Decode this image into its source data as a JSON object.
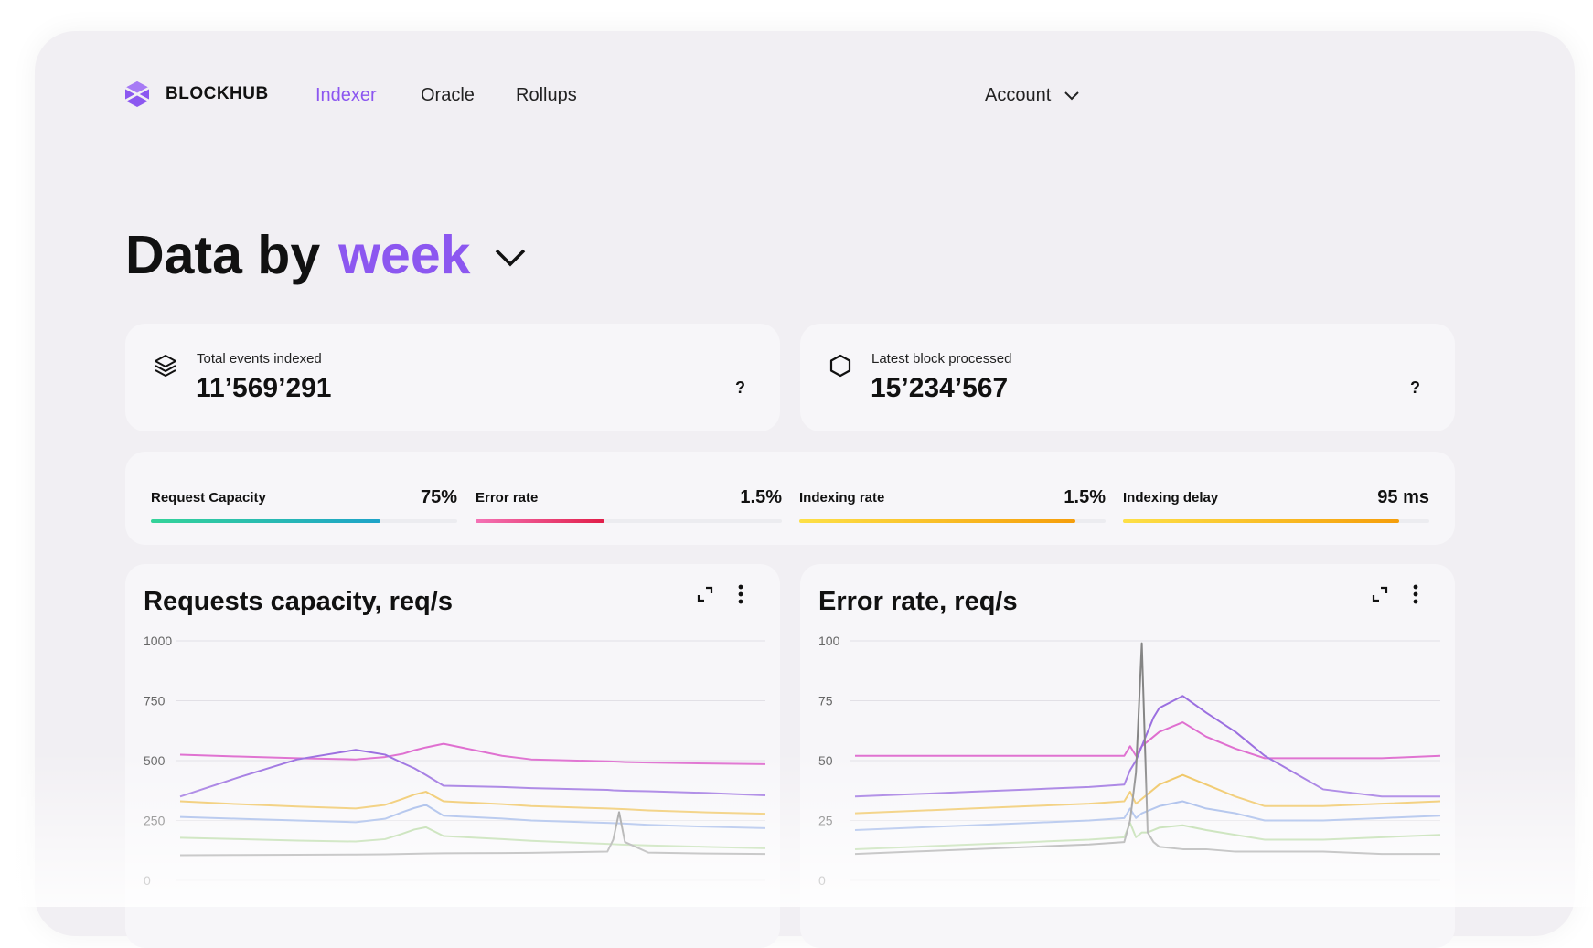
{
  "nav": {
    "brand": "BLOCKHUB",
    "items": [
      {
        "label": "Indexer",
        "active": true
      },
      {
        "label": "Oracle",
        "active": false
      },
      {
        "label": "Rollups",
        "active": false
      }
    ],
    "account_label": "Account"
  },
  "heading": {
    "prefix": "Data by",
    "period": "week"
  },
  "kpis": [
    {
      "icon": "layers-icon",
      "label": "Total events indexed",
      "value": "11’569’291",
      "help": "?"
    },
    {
      "icon": "hexagon-icon",
      "label": "Latest block processed",
      "value": "15’234’567",
      "help": "?"
    }
  ],
  "metrics": [
    {
      "label": "Request Capacity",
      "value": "75%",
      "fill_fraction": 0.75,
      "colors": [
        "#34d399",
        "#1ea3c9"
      ]
    },
    {
      "label": "Error rate",
      "value": "1.5%",
      "fill_fraction": 0.42,
      "colors": [
        "#f472b6",
        "#e11d48"
      ]
    },
    {
      "label": "Indexing rate",
      "value": "1.5%",
      "fill_fraction": 0.9,
      "colors": [
        "#fde047",
        "#f59e0b"
      ]
    },
    {
      "label": "Indexing delay",
      "value": "95 ms",
      "fill_fraction": 0.9,
      "colors": [
        "#fde047",
        "#f59e0b"
      ]
    }
  ],
  "colors": {
    "accent": "#8c57f0"
  },
  "chart_data": [
    {
      "type": "line",
      "title": "Requests capacity, req/s",
      "ylim": [
        0,
        1000
      ],
      "yticks": [
        0,
        250,
        500,
        750,
        1000
      ],
      "x": [
        0,
        10,
        20,
        30,
        35,
        38,
        40,
        42,
        45,
        55,
        60,
        73,
        74,
        75,
        76,
        80,
        90,
        100
      ],
      "series": [
        {
          "color": "#df6fd0",
          "values": [
            525,
            517,
            510,
            505,
            515,
            528,
            543,
            555,
            570,
            520,
            505,
            497,
            496,
            495,
            494,
            492,
            488,
            485
          ]
        },
        {
          "color": "#9b6fe0",
          "values": [
            350,
            430,
            505,
            545,
            525,
            490,
            468,
            440,
            395,
            390,
            385,
            378,
            376,
            375,
            374,
            372,
            365,
            355
          ]
        },
        {
          "color": "#eec053",
          "values": [
            330,
            318,
            308,
            300,
            315,
            340,
            358,
            370,
            330,
            318,
            310,
            300,
            299,
            298,
            297,
            292,
            284,
            278
          ]
        },
        {
          "color": "#94aee6",
          "values": [
            265,
            257,
            250,
            243,
            257,
            285,
            302,
            315,
            270,
            258,
            250,
            240,
            239,
            238,
            237,
            232,
            224,
            218
          ]
        },
        {
          "color": "#a8d190",
          "values": [
            178,
            172,
            166,
            162,
            172,
            195,
            212,
            222,
            185,
            172,
            165,
            152,
            151,
            150,
            149,
            146,
            140,
            134
          ]
        },
        {
          "color": "#858585",
          "values": [
            105,
            106,
            107,
            108,
            109,
            110,
            111,
            112,
            113,
            114,
            115,
            120,
            170,
            285,
            160,
            116,
            112,
            110
          ]
        }
      ]
    },
    {
      "type": "line",
      "title": "Error rate, req/s",
      "ylim": [
        0,
        100
      ],
      "yticks": [
        0,
        25,
        50,
        75,
        100
      ],
      "x": [
        0,
        10,
        20,
        30,
        40,
        46,
        47,
        48,
        49,
        50,
        51,
        52,
        56,
        60,
        65,
        70,
        75,
        80,
        90,
        100
      ],
      "series": [
        {
          "color": "#df6fd0",
          "values": [
            52,
            52,
            52,
            52,
            52,
            52,
            56,
            52,
            56,
            58,
            60,
            62,
            66,
            60,
            55,
            51,
            51,
            51,
            51,
            52
          ]
        },
        {
          "color": "#9b6fe0",
          "values": [
            35,
            36,
            37,
            38,
            39,
            40,
            46,
            50,
            56,
            62,
            68,
            72,
            77,
            70,
            62,
            52,
            45,
            38,
            35,
            35
          ]
        },
        {
          "color": "#eec053",
          "values": [
            28,
            29,
            30,
            31,
            32,
            33,
            37,
            32,
            34,
            36,
            38,
            40,
            44,
            40,
            35,
            31,
            31,
            31,
            32,
            33
          ]
        },
        {
          "color": "#94aee6",
          "values": [
            21,
            22,
            23,
            24,
            25,
            26,
            30,
            26,
            28,
            29,
            30,
            31,
            33,
            30,
            28,
            25,
            25,
            25,
            26,
            27
          ]
        },
        {
          "color": "#a8d190",
          "values": [
            13,
            14,
            15,
            16,
            17,
            18,
            24,
            18,
            20,
            20,
            21,
            22,
            23,
            21,
            19,
            17,
            17,
            17,
            18,
            19
          ]
        },
        {
          "color": "#858585",
          "values": [
            11,
            12,
            13,
            14,
            15,
            16,
            25,
            45,
            99,
            20,
            16,
            14,
            13,
            13,
            12,
            12,
            12,
            12,
            11,
            11
          ]
        }
      ]
    }
  ]
}
